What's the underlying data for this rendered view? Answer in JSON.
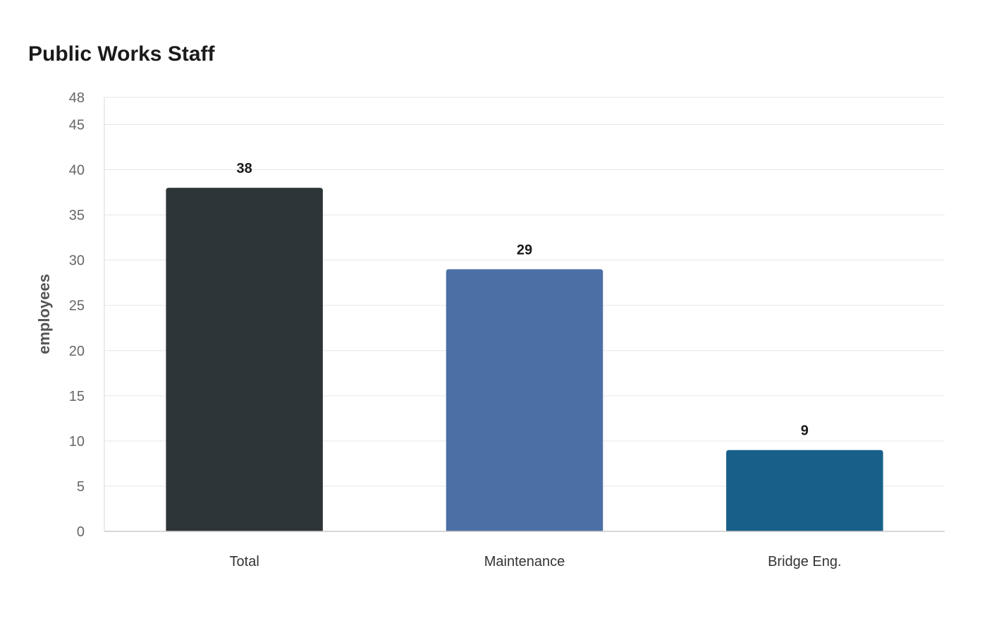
{
  "chart_data": {
    "type": "bar",
    "title": "Public Works Staff",
    "ylabel": "employees",
    "xlabel": "",
    "categories": [
      "Total",
      "Maintenance",
      "Bridge Eng."
    ],
    "values": [
      38,
      29,
      9
    ],
    "colors": [
      "#2e3538",
      "#4c70a5",
      "#186089"
    ],
    "ylim": [
      0,
      48
    ],
    "yticks": [
      0,
      5,
      10,
      15,
      20,
      25,
      30,
      35,
      40,
      45,
      48
    ],
    "grid": true,
    "legend": "none"
  }
}
